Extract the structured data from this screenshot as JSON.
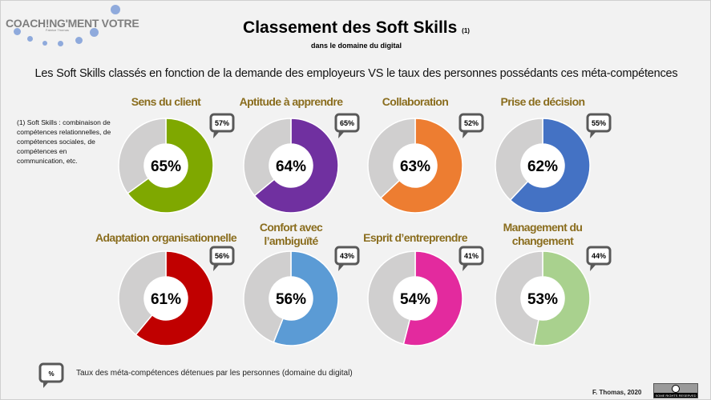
{
  "logo": {
    "name": "COACH!NG'MENT VOTRE",
    "author": "Fabrice Thomas"
  },
  "header": {
    "title": "Classement des Soft Skills",
    "title_note": "(1)",
    "subtitle": "dans le domaine du digital"
  },
  "lead": "Les Soft Skills classés en fonction de la demande des employeurs VS le taux des personnes possédants ces méta-compétences",
  "footnote": "(1) Soft Skills : combinaison de compétences relationnelles, de compétences sociales, de compétences en communication, etc.",
  "colors": {
    "remainder": "#d0cfcf",
    "title": "#8a6d1e",
    "bubble": "#595959"
  },
  "chart_data": {
    "type": "donut",
    "skills": [
      {
        "name": "Sens du client",
        "demand": 65,
        "held": 57,
        "color": "#7fa800"
      },
      {
        "name": "Aptitude à apprendre",
        "demand": 64,
        "held": 65,
        "color": "#7030a0"
      },
      {
        "name": "Collaboration",
        "demand": 63,
        "held": 52,
        "color": "#ed7d31"
      },
      {
        "name": "Prise de décision",
        "demand": 62,
        "held": 55,
        "color": "#4472c4"
      },
      {
        "name": "Adaptation organisationnelle",
        "demand": 61,
        "held": 56,
        "color": "#c00000"
      },
      {
        "name": "Confort avec l’ambiguïté",
        "demand": 56,
        "held": 43,
        "color": "#5b9bd5"
      },
      {
        "name": "Esprit d’entreprendre",
        "demand": 54,
        "held": 41,
        "color": "#e32a9e"
      },
      {
        "name": "Management du changement",
        "demand": 53,
        "held": 44,
        "color": "#a9d18e"
      }
    ]
  },
  "legend": {
    "symbol": "%",
    "text": "Taux des méta-compétences détenues par les personnes (domaine du digital)"
  },
  "credit": "F. Thomas, 2020",
  "license": "SOME RIGHTS RESERVED"
}
